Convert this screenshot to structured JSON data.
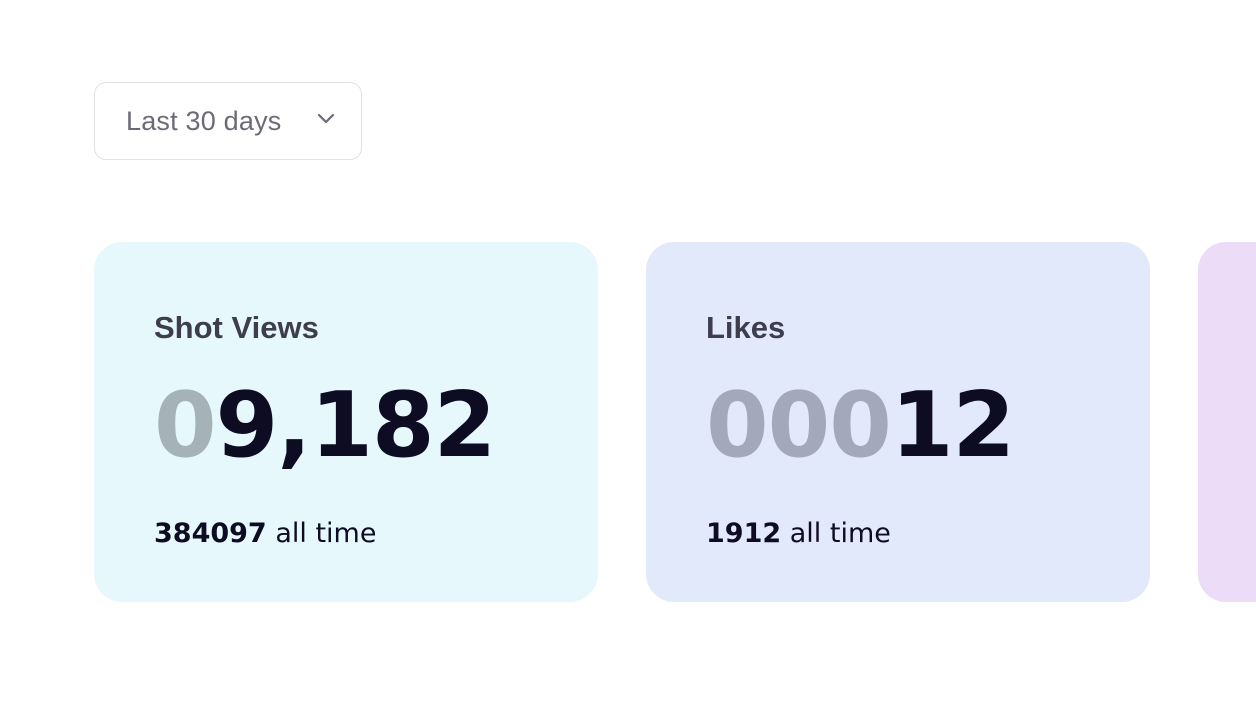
{
  "range_select": {
    "label": "Last 30 days",
    "icon": "chevron-down-icon"
  },
  "cards": [
    {
      "title": "Shot Views",
      "number_padding": "0",
      "number_value": "9,182",
      "all_time_count": "384097",
      "all_time_suffix": "all time",
      "background": "#e6f8fc",
      "padding_color": "#a5b2b8"
    },
    {
      "title": "Likes",
      "number_padding": "000",
      "number_value": "12",
      "all_time_count": "1912",
      "all_time_suffix": "all time",
      "background": "#e2e9fb",
      "padding_color": "#a3a9ba"
    },
    {
      "background": "#ecdcf8"
    }
  ]
}
